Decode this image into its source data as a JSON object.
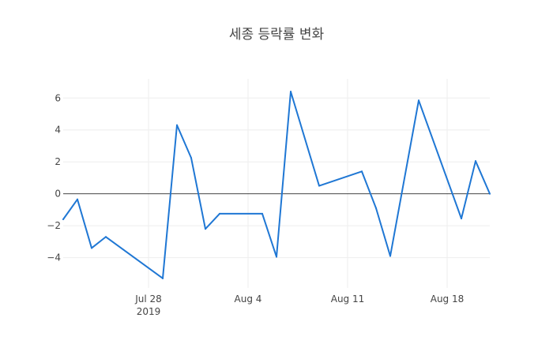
{
  "chart_data": {
    "type": "line",
    "title": "세종 등락률 변화",
    "xlabel": "",
    "ylabel": "",
    "x": [
      "2019-07-22",
      "2019-07-23",
      "2019-07-24",
      "2019-07-25",
      "2019-07-29",
      "2019-07-30",
      "2019-07-31",
      "2019-08-01",
      "2019-08-02",
      "2019-08-05",
      "2019-08-06",
      "2019-08-07",
      "2019-08-09",
      "2019-08-12",
      "2019-08-13",
      "2019-08-14",
      "2019-08-16",
      "2019-08-19",
      "2019-08-20",
      "2019-08-21"
    ],
    "series": [
      {
        "name": "",
        "color": "#1f77d4",
        "values": [
          -1.6,
          -0.35,
          -3.4,
          -2.7,
          -5.3,
          4.3,
          2.25,
          -2.2,
          -1.25,
          -1.25,
          -3.95,
          6.4,
          0.5,
          1.4,
          -0.9,
          -3.9,
          5.85,
          -1.55,
          2.05,
          0
        ]
      }
    ],
    "x_ticks": [
      {
        "date": "2019-07-28",
        "label": "Jul 28",
        "sublabel": "2019"
      },
      {
        "date": "2019-08-04",
        "label": "Aug 4",
        "sublabel": ""
      },
      {
        "date": "2019-08-11",
        "label": "Aug 11",
        "sublabel": ""
      },
      {
        "date": "2019-08-18",
        "label": "Aug 18",
        "sublabel": ""
      }
    ],
    "y_ticks": [
      -4,
      -2,
      0,
      2,
      4,
      6
    ],
    "y_tick_labels": [
      "−4",
      "−2",
      "0",
      "2",
      "4",
      "6"
    ],
    "xlim": [
      "2019-07-22",
      "2019-08-21"
    ],
    "ylim": [
      -5.9,
      7.2
    ],
    "grid": true,
    "zero_line": true,
    "legend": "none"
  }
}
